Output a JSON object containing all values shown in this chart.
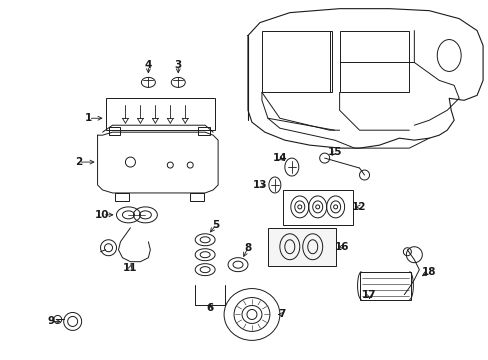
{
  "bg_color": "#ffffff",
  "line_color": "#1a1a1a",
  "fig_width": 4.89,
  "fig_height": 3.6,
  "dpi": 100,
  "label_fontsize": 7.5,
  "arrow_lw": 0.6,
  "draw_lw": 0.7
}
